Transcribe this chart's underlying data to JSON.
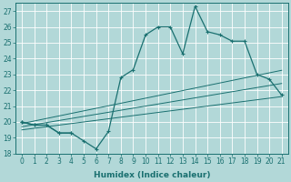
{
  "xlabel": "Humidex (Indice chaleur)",
  "x": [
    0,
    1,
    2,
    3,
    4,
    5,
    6,
    7,
    8,
    9,
    10,
    11,
    12,
    13,
    14,
    15,
    16,
    17,
    18,
    19,
    20,
    21
  ],
  "line_main": [
    20.0,
    19.8,
    19.8,
    19.3,
    19.3,
    18.8,
    18.3,
    19.4,
    22.8,
    23.3,
    25.5,
    26.0,
    26.0,
    24.3,
    27.3,
    25.7,
    25.5,
    25.1,
    25.1,
    23.0,
    22.7,
    21.7
  ],
  "line_short1": [
    20.0,
    19.8,
    19.8,
    19.3,
    19.3,
    null,
    null,
    null,
    null,
    null,
    null,
    null,
    null,
    null,
    null,
    null,
    null,
    null,
    null,
    null,
    null,
    null
  ],
  "line_reg1": [
    19.5,
    19.6,
    19.7,
    19.8,
    19.9,
    20.0,
    20.1,
    20.2,
    20.3,
    20.4,
    20.5,
    20.6,
    20.7,
    20.8,
    20.9,
    21.0,
    21.1,
    21.2,
    21.3,
    21.4,
    21.5,
    21.6
  ],
  "line_reg2": [
    19.7,
    19.83,
    19.96,
    20.09,
    20.22,
    20.35,
    20.48,
    20.61,
    20.74,
    20.87,
    21.0,
    21.13,
    21.26,
    21.39,
    21.52,
    21.65,
    21.78,
    21.91,
    22.04,
    22.17,
    22.3,
    22.43
  ],
  "line_reg3": [
    19.9,
    20.06,
    20.22,
    20.38,
    20.54,
    20.7,
    20.86,
    21.02,
    21.18,
    21.34,
    21.5,
    21.66,
    21.82,
    21.98,
    22.14,
    22.3,
    22.46,
    22.62,
    22.78,
    22.94,
    23.1,
    23.26
  ],
  "ylim": [
    18,
    27.5
  ],
  "yticks": [
    18,
    19,
    20,
    21,
    22,
    23,
    24,
    25,
    26,
    27
  ],
  "xlim": [
    -0.5,
    21.5
  ],
  "xticks": [
    0,
    1,
    2,
    3,
    4,
    5,
    6,
    7,
    8,
    9,
    10,
    11,
    12,
    13,
    14,
    15,
    16,
    17,
    18,
    19,
    20,
    21
  ],
  "color": "#1a7070",
  "bg_color": "#b2d8d8",
  "grid_color": "#e8f5f5",
  "tick_fontsize": 5.5,
  "xlabel_fontsize": 6.5
}
